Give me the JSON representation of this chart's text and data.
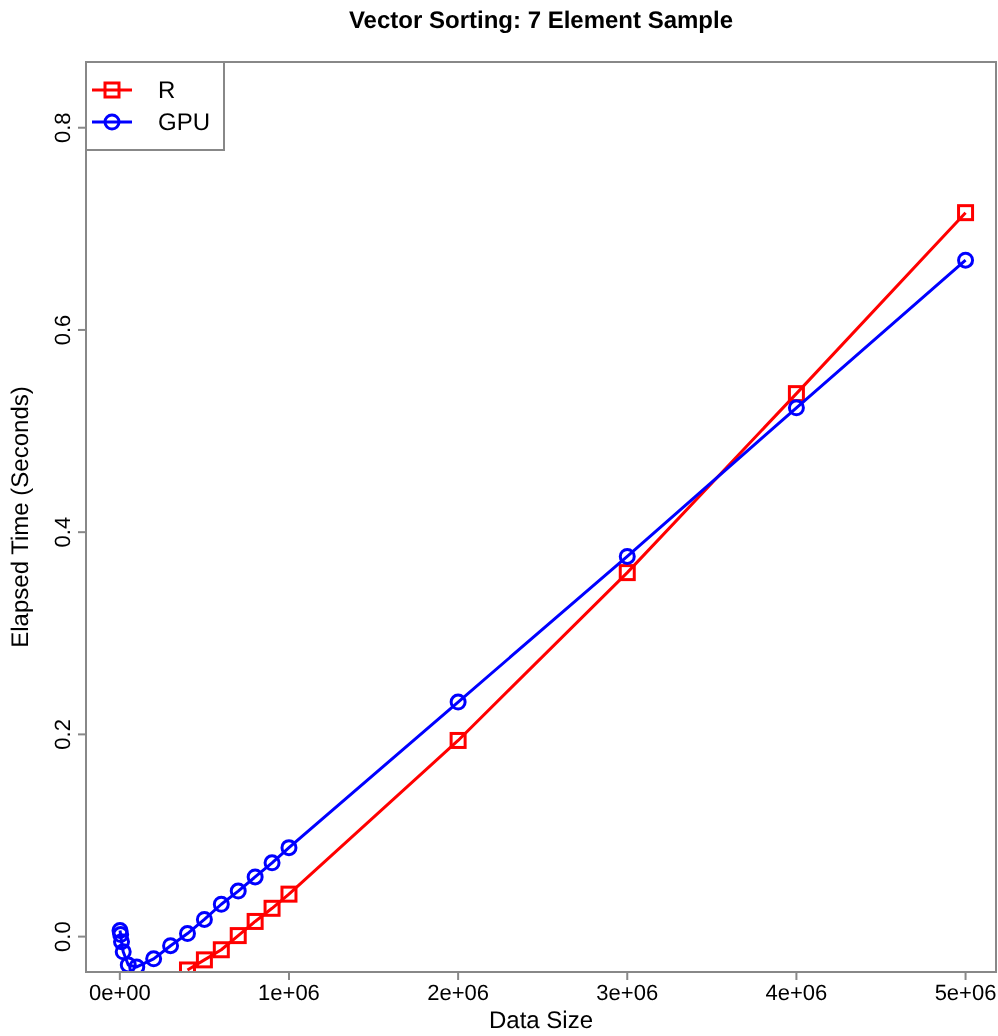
{
  "chart_data": {
    "type": "line",
    "title": "Vector Sorting: 7 Element Sample",
    "xlabel": "Data Size",
    "ylabel": "Elapsed Time (Seconds)",
    "xlim": [
      -200000,
      5180000
    ],
    "ylim": [
      -0.035,
      0.865
    ],
    "xticks": [
      {
        "value": 0,
        "label": "0e+00"
      },
      {
        "value": 1000000,
        "label": "1e+06"
      },
      {
        "value": 2000000,
        "label": "2e+06"
      },
      {
        "value": 3000000,
        "label": "3e+06"
      },
      {
        "value": 4000000,
        "label": "4e+06"
      },
      {
        "value": 5000000,
        "label": "5e+06"
      }
    ],
    "yticks": [
      {
        "value": 0,
        "label": "0.0"
      },
      {
        "value": 0.2,
        "label": "0.2"
      },
      {
        "value": 0.4,
        "label": "0.4"
      },
      {
        "value": 0.6,
        "label": "0.6"
      },
      {
        "value": 0.8,
        "label": "0.8"
      }
    ],
    "grid": false,
    "legend": "top left",
    "line_style": "solid",
    "series": [
      {
        "name": "R",
        "color": "#ff0000",
        "marker": "square",
        "x": [
          400000,
          500000,
          600000,
          700000,
          800000,
          900000,
          1000000,
          2000000,
          3000000,
          4000000,
          5000000
        ],
        "values": [
          -0.033,
          -0.023,
          -0.013,
          0.001,
          0.015,
          0.028,
          0.042,
          0.194,
          0.36,
          0.537,
          0.716
        ]
      },
      {
        "name": "GPU",
        "color": "#0000ff",
        "marker": "circle",
        "x": [
          1000,
          5000,
          10000,
          20000,
          50000,
          100000,
          200000,
          300000,
          400000,
          500000,
          600000,
          700000,
          800000,
          900000,
          1000000,
          2000000,
          3000000,
          4000000,
          5000000
        ],
        "values": [
          0.006,
          0.002,
          -0.005,
          -0.015,
          -0.028,
          -0.03,
          -0.022,
          -0.009,
          0.003,
          0.017,
          0.032,
          0.045,
          0.059,
          0.073,
          0.088,
          0.232,
          0.376,
          0.523,
          0.669
        ]
      }
    ]
  }
}
